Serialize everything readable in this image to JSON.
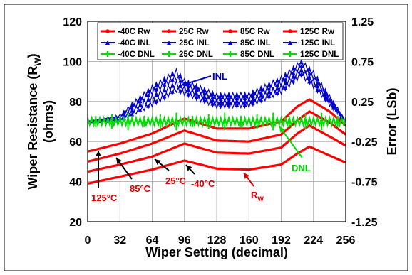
{
  "chart_data": {
    "type": "line",
    "xlabel": "Wiper Setting (decimal)",
    "ylabel": "Wiper Resistance (R",
    "ylabel_sub": "W",
    "ylabel_unit": "(ohms)",
    "y2label": "Error (LSb)",
    "xlim": [
      0,
      256
    ],
    "ylim": [
      20,
      120
    ],
    "y2lim": [
      -1.25,
      1.25
    ],
    "x_ticks": [
      "0",
      "32",
      "64",
      "96",
      "128",
      "160",
      "192",
      "224",
      "256"
    ],
    "y_ticks": [
      "20",
      "40",
      "60",
      "80",
      "100",
      "120"
    ],
    "y2_ticks": [
      "-1.25",
      "-0.75",
      "-0.25",
      "0.25",
      "0.75",
      "1.25"
    ],
    "grid": true,
    "legend_position": "top",
    "colors": {
      "rw": "#ff0000",
      "inl": "#0000cc",
      "dnl": "#00dd00",
      "rw_label": "#dd0000",
      "dnl_label": "#00cc00"
    },
    "legend": [
      [
        "-40C Rw",
        "25C Rw",
        "85C Rw",
        "125C Rw"
      ],
      [
        "-40C INL",
        "25C INL",
        "85C INL",
        "125C INL"
      ],
      [
        "-40C DNL",
        "25C DNL",
        "85C DNL",
        "125C DNL"
      ]
    ],
    "annotations": {
      "inl": "INL",
      "dnl": "DNL",
      "rw": "R",
      "rw_sub": "W",
      "t125": "125°C",
      "t85": "85°C",
      "t25": "25°C",
      "tm40": "-40°C"
    },
    "rw_series": [
      {
        "name": "-40C Rw",
        "x": [
          0,
          32,
          64,
          96,
          128,
          160,
          192,
          208,
          220,
          240,
          256
        ],
        "y": [
          39,
          42.5,
          46,
          50.5,
          46.5,
          46,
          48.5,
          54,
          57.5,
          53,
          49.5
        ]
      },
      {
        "name": "25C Rw",
        "x": [
          0,
          32,
          64,
          96,
          128,
          160,
          192,
          208,
          220,
          240,
          256
        ],
        "y": [
          45,
          48.5,
          52.5,
          59,
          54.5,
          54,
          57,
          64,
          68,
          62.5,
          58
        ]
      },
      {
        "name": "85C Rw",
        "x": [
          0,
          32,
          64,
          96,
          128,
          160,
          192,
          208,
          220,
          240,
          256
        ],
        "y": [
          50,
          54,
          59,
          65.5,
          60.5,
          60,
          63.5,
          70.5,
          75,
          69.5,
          63.5
        ]
      },
      {
        "name": "125C Rw",
        "x": [
          0,
          32,
          64,
          96,
          128,
          160,
          192,
          208,
          220,
          240,
          256
        ],
        "y": [
          55,
          59,
          64,
          71.5,
          66.5,
          66.5,
          70,
          77.5,
          81,
          75,
          68
        ]
      }
    ],
    "inl_series": [
      {
        "name": "-40C INL",
        "x": [
          0,
          32,
          64,
          88,
          96,
          128,
          160,
          192,
          212,
          224,
          256
        ],
        "y": [
          0,
          0.07,
          0.42,
          0.62,
          0.5,
          0.32,
          0.33,
          0.53,
          0.74,
          0.6,
          0
        ]
      },
      {
        "name": "25C INL",
        "x": [
          0,
          32,
          64,
          88,
          96,
          128,
          160,
          192,
          212,
          224,
          256
        ],
        "y": [
          0,
          0.05,
          0.37,
          0.55,
          0.46,
          0.28,
          0.29,
          0.48,
          0.69,
          0.55,
          0
        ]
      },
      {
        "name": "85C INL",
        "x": [
          0,
          32,
          64,
          88,
          96,
          128,
          160,
          192,
          212,
          224,
          256
        ],
        "y": [
          0,
          0.03,
          0.3,
          0.47,
          0.41,
          0.24,
          0.25,
          0.43,
          0.64,
          0.5,
          0
        ]
      },
      {
        "name": "125C INL",
        "x": [
          0,
          32,
          64,
          88,
          96,
          128,
          160,
          192,
          212,
          224,
          256
        ],
        "y": [
          0,
          0.01,
          0.22,
          0.4,
          0.36,
          0.2,
          0.21,
          0.38,
          0.59,
          0.45,
          0
        ]
      }
    ],
    "dnl_series": [
      {
        "name": "-40C DNL",
        "x": [
          0,
          256
        ],
        "y": [
          0,
          0
        ]
      },
      {
        "name": "25C DNL",
        "x": [
          0,
          256
        ],
        "y": [
          0,
          0
        ]
      },
      {
        "name": "85C DNL",
        "x": [
          0,
          256
        ],
        "y": [
          0,
          0
        ]
      },
      {
        "name": "125C DNL",
        "x": [
          0,
          256
        ],
        "y": [
          0,
          0
        ]
      }
    ],
    "dnl_spikes_x": [
      8,
      24,
      40,
      56,
      72,
      88,
      104,
      120,
      136,
      152,
      168,
      184,
      200,
      216,
      232,
      248
    ]
  }
}
